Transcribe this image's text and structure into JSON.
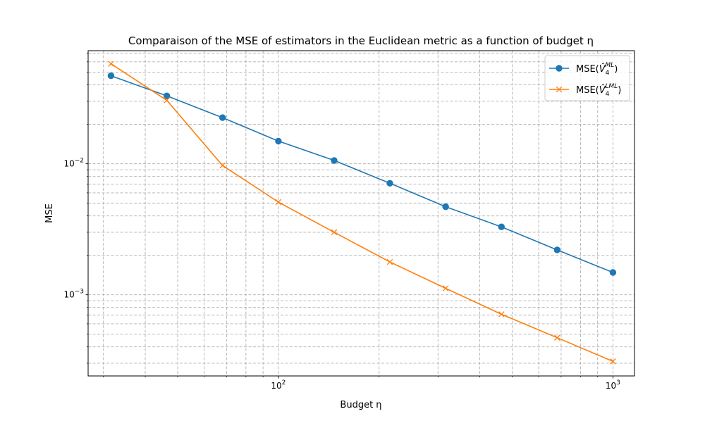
{
  "chart_data": {
    "type": "line",
    "title": "Comparaison of the MSE of estimators in the Euclidean metric as a function of budget η",
    "xlabel": "Budget η",
    "ylabel": "MSE",
    "xscale": "log",
    "yscale": "log",
    "xlim": [
      27,
      1160
    ],
    "ylim": [
      0.00024,
      0.073
    ],
    "grid": true,
    "legend_position": "top-right",
    "x_major_ticks": [
      {
        "value": 100,
        "base": "10",
        "exp": "2"
      },
      {
        "value": 1000,
        "base": "10",
        "exp": "3"
      }
    ],
    "y_major_ticks": [
      {
        "value": 0.01,
        "base": "10",
        "exp": "−2"
      },
      {
        "value": 0.001,
        "base": "10",
        "exp": "−3"
      }
    ],
    "x": [
      31.6,
      46.4,
      68.1,
      100,
      146.8,
      215.4,
      316.2,
      464.2,
      681.3,
      1000
    ],
    "series": [
      {
        "name": "MSE(V̂4ML)",
        "legend_main": "MSE(",
        "legend_v": "V̂",
        "legend_sub": "4",
        "legend_sup": "ML",
        "legend_close": ")",
        "color": "#1f77b4",
        "marker": "circle",
        "values": [
          0.047,
          0.033,
          0.0225,
          0.0149,
          0.0106,
          0.0071,
          0.0047,
          0.0033,
          0.0022,
          0.00148
        ]
      },
      {
        "name": "MSE(V̂4LML)",
        "legend_main": "MSE(",
        "legend_v": "V̂",
        "legend_sub": "4",
        "legend_sup": "LML",
        "legend_close": ")",
        "color": "#ff7f0e",
        "marker": "x",
        "values": [
          0.058,
          0.0305,
          0.0097,
          0.0051,
          0.003,
          0.00178,
          0.00112,
          0.00071,
          0.00047,
          0.00031
        ]
      }
    ]
  }
}
